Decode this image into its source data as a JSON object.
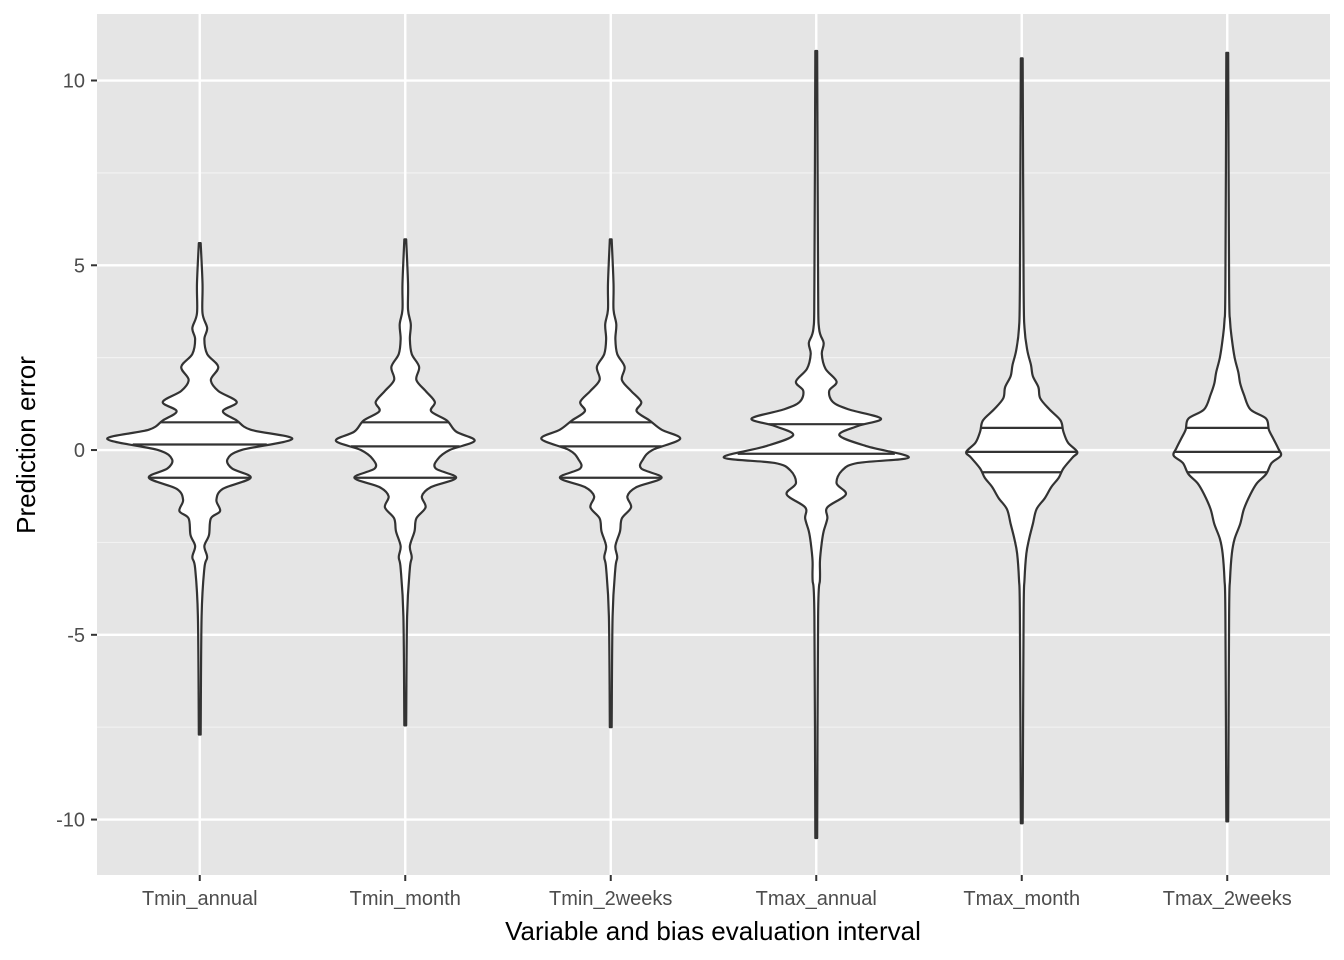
{
  "chart_data": {
    "type": "violin",
    "xlabel": "Variable and bias evaluation interval",
    "ylabel": "Prediction error",
    "ylim": [
      -11.5,
      11.8
    ],
    "yticks": [
      -10,
      -5,
      0,
      5,
      10
    ],
    "ytick_labels": [
      "-10",
      "-5",
      "0",
      "5",
      "10"
    ],
    "grid": true,
    "legend": "none",
    "categories": [
      "Tmin_annual",
      "Tmin_month",
      "Tmin_2weeks",
      "Tmax_annual",
      "Tmax_month",
      "Tmax_2weeks"
    ],
    "series": [
      {
        "category": "Tmin_annual",
        "min": -7.7,
        "max": 5.6,
        "quantiles": [
          -0.75,
          0.15,
          0.75
        ],
        "density": [
          [
            -7.7,
            0.01
          ],
          [
            -4.5,
            0.02
          ],
          [
            -3.2,
            0.05
          ],
          [
            -2.9,
            0.08
          ],
          [
            -2.6,
            0.05
          ],
          [
            -2.3,
            0.1
          ],
          [
            -1.85,
            0.12
          ],
          [
            -1.65,
            0.22
          ],
          [
            -1.35,
            0.18
          ],
          [
            -1.05,
            0.25
          ],
          [
            -0.75,
            0.55
          ],
          [
            -0.5,
            0.35
          ],
          [
            -0.25,
            0.3
          ],
          [
            0.0,
            0.45
          ],
          [
            0.3,
            1.0
          ],
          [
            0.55,
            0.55
          ],
          [
            0.8,
            0.4
          ],
          [
            1.05,
            0.25
          ],
          [
            1.3,
            0.4
          ],
          [
            1.6,
            0.2
          ],
          [
            1.9,
            0.12
          ],
          [
            2.25,
            0.2
          ],
          [
            2.6,
            0.08
          ],
          [
            3.0,
            0.05
          ],
          [
            3.3,
            0.08
          ],
          [
            3.7,
            0.03
          ],
          [
            4.5,
            0.03
          ],
          [
            5.6,
            0.01
          ]
        ]
      },
      {
        "category": "Tmin_month",
        "min": -7.45,
        "max": 5.7,
        "quantiles": [
          -0.75,
          0.1,
          0.75
        ],
        "density": [
          [
            -7.45,
            0.01
          ],
          [
            -4.5,
            0.02
          ],
          [
            -3.2,
            0.05
          ],
          [
            -2.9,
            0.07
          ],
          [
            -2.6,
            0.05
          ],
          [
            -2.2,
            0.1
          ],
          [
            -1.85,
            0.12
          ],
          [
            -1.55,
            0.22
          ],
          [
            -1.25,
            0.18
          ],
          [
            -1.0,
            0.28
          ],
          [
            -0.75,
            0.55
          ],
          [
            -0.5,
            0.33
          ],
          [
            -0.25,
            0.35
          ],
          [
            0.0,
            0.48
          ],
          [
            0.25,
            0.75
          ],
          [
            0.5,
            0.55
          ],
          [
            0.8,
            0.45
          ],
          [
            1.05,
            0.28
          ],
          [
            1.3,
            0.32
          ],
          [
            1.6,
            0.22
          ],
          [
            1.9,
            0.12
          ],
          [
            2.25,
            0.15
          ],
          [
            2.6,
            0.07
          ],
          [
            3.0,
            0.05
          ],
          [
            3.4,
            0.06
          ],
          [
            3.8,
            0.03
          ],
          [
            4.5,
            0.03
          ],
          [
            5.7,
            0.01
          ]
        ]
      },
      {
        "category": "Tmin_2weeks",
        "min": -7.5,
        "max": 5.7,
        "quantiles": [
          -0.75,
          0.1,
          0.75
        ],
        "density": [
          [
            -7.5,
            0.01
          ],
          [
            -4.5,
            0.02
          ],
          [
            -3.2,
            0.05
          ],
          [
            -2.9,
            0.07
          ],
          [
            -2.6,
            0.05
          ],
          [
            -2.2,
            0.1
          ],
          [
            -1.85,
            0.12
          ],
          [
            -1.55,
            0.22
          ],
          [
            -1.25,
            0.18
          ],
          [
            -1.0,
            0.28
          ],
          [
            -0.75,
            0.55
          ],
          [
            -0.5,
            0.33
          ],
          [
            -0.25,
            0.35
          ],
          [
            0.0,
            0.45
          ],
          [
            0.3,
            0.75
          ],
          [
            0.55,
            0.55
          ],
          [
            0.8,
            0.42
          ],
          [
            1.05,
            0.28
          ],
          [
            1.3,
            0.33
          ],
          [
            1.6,
            0.22
          ],
          [
            1.9,
            0.12
          ],
          [
            2.25,
            0.15
          ],
          [
            2.6,
            0.07
          ],
          [
            3.0,
            0.05
          ],
          [
            3.4,
            0.06
          ],
          [
            3.8,
            0.03
          ],
          [
            4.5,
            0.03
          ],
          [
            5.7,
            0.01
          ]
        ]
      },
      {
        "category": "Tmax_annual",
        "min": -10.5,
        "max": 10.8,
        "quantiles": [
          -0.1,
          0.7
        ],
        "density": [
          [
            -10.5,
            0.01
          ],
          [
            -4.5,
            0.02
          ],
          [
            -3.5,
            0.04
          ],
          [
            -3.0,
            0.04
          ],
          [
            -2.5,
            0.06
          ],
          [
            -2.2,
            0.08
          ],
          [
            -1.85,
            0.12
          ],
          [
            -1.55,
            0.12
          ],
          [
            -1.2,
            0.32
          ],
          [
            -0.9,
            0.22
          ],
          [
            -0.55,
            0.28
          ],
          [
            -0.35,
            0.45
          ],
          [
            -0.2,
            1.0
          ],
          [
            0.1,
            0.55
          ],
          [
            0.4,
            0.25
          ],
          [
            0.65,
            0.45
          ],
          [
            0.85,
            0.7
          ],
          [
            1.1,
            0.35
          ],
          [
            1.3,
            0.18
          ],
          [
            1.6,
            0.14
          ],
          [
            1.85,
            0.22
          ],
          [
            2.2,
            0.1
          ],
          [
            2.6,
            0.06
          ],
          [
            2.9,
            0.08
          ],
          [
            3.3,
            0.03
          ],
          [
            4.5,
            0.02
          ],
          [
            10.8,
            0.01
          ]
        ]
      },
      {
        "category": "Tmax_month",
        "min": -10.1,
        "max": 10.6,
        "quantiles": [
          -0.6,
          -0.05,
          0.6
        ],
        "density": [
          [
            -10.1,
            0.01
          ],
          [
            -4.5,
            0.02
          ],
          [
            -3.5,
            0.03
          ],
          [
            -2.8,
            0.05
          ],
          [
            -2.4,
            0.08
          ],
          [
            -2.0,
            0.12
          ],
          [
            -1.6,
            0.16
          ],
          [
            -1.3,
            0.25
          ],
          [
            -1.0,
            0.32
          ],
          [
            -0.75,
            0.4
          ],
          [
            -0.5,
            0.45
          ],
          [
            -0.2,
            0.55
          ],
          [
            -0.05,
            0.6
          ],
          [
            0.2,
            0.5
          ],
          [
            0.5,
            0.45
          ],
          [
            0.8,
            0.42
          ],
          [
            1.1,
            0.3
          ],
          [
            1.4,
            0.2
          ],
          [
            1.7,
            0.18
          ],
          [
            2.0,
            0.12
          ],
          [
            2.3,
            0.1
          ],
          [
            2.7,
            0.06
          ],
          [
            3.3,
            0.03
          ],
          [
            4.5,
            0.02
          ],
          [
            10.6,
            0.01
          ]
        ]
      },
      {
        "category": "Tmax_2weeks",
        "min": -10.05,
        "max": 10.75,
        "quantiles": [
          -0.6,
          -0.05,
          0.6
        ],
        "density": [
          [
            -10.05,
            0.01
          ],
          [
            -4.5,
            0.02
          ],
          [
            -3.5,
            0.03
          ],
          [
            -2.8,
            0.05
          ],
          [
            -2.4,
            0.08
          ],
          [
            -2.0,
            0.14
          ],
          [
            -1.6,
            0.18
          ],
          [
            -1.2,
            0.25
          ],
          [
            -0.9,
            0.32
          ],
          [
            -0.65,
            0.42
          ],
          [
            -0.35,
            0.48
          ],
          [
            -0.15,
            0.58
          ],
          [
            0.05,
            0.55
          ],
          [
            0.3,
            0.5
          ],
          [
            0.55,
            0.45
          ],
          [
            0.85,
            0.42
          ],
          [
            1.1,
            0.25
          ],
          [
            1.5,
            0.18
          ],
          [
            1.8,
            0.14
          ],
          [
            2.1,
            0.12
          ],
          [
            2.5,
            0.08
          ],
          [
            3.0,
            0.05
          ],
          [
            3.5,
            0.03
          ],
          [
            4.5,
            0.02
          ],
          [
            10.75,
            0.01
          ]
        ]
      }
    ]
  }
}
